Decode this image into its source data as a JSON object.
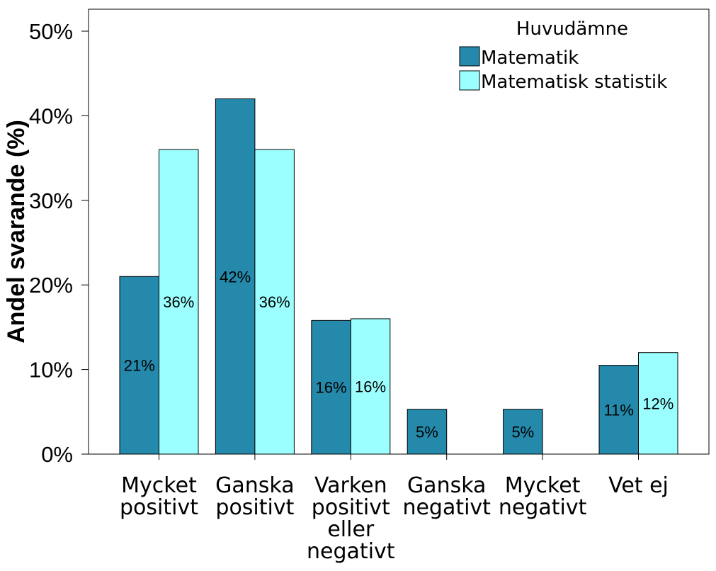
{
  "chart_data": {
    "type": "bar",
    "ylabel": "Andel svarande (%)",
    "xlabel": "",
    "ylim": [
      0,
      50
    ],
    "yticks": [
      "0%",
      "10%",
      "20%",
      "30%",
      "40%",
      "50%"
    ],
    "ytick_values": [
      0,
      10,
      20,
      30,
      40,
      50
    ],
    "categories": [
      [
        "Mycket",
        "positivt"
      ],
      [
        "Ganska",
        "positivt"
      ],
      [
        "Varken",
        "positivt",
        "eller",
        "negativt"
      ],
      [
        "Ganska",
        "negativt"
      ],
      [
        "Mycket",
        "negativt"
      ],
      [
        "Vet ej"
      ]
    ],
    "legend": {
      "title": "Huvudämne",
      "placement": "top-right"
    },
    "series": [
      {
        "name": "Matematik",
        "color": "#2589ab",
        "values": [
          21,
          42,
          15.8,
          5.3,
          5.3,
          10.5
        ],
        "labels": [
          "21%",
          "42%",
          "16%",
          "5%",
          "5%",
          "11%"
        ]
      },
      {
        "name": "Matematisk statistik",
        "color": "#9cffff",
        "values": [
          36,
          36,
          16,
          0,
          0,
          12
        ],
        "labels": [
          "36%",
          "36%",
          "16%",
          "",
          "",
          "12%"
        ]
      }
    ],
    "grid": false
  }
}
